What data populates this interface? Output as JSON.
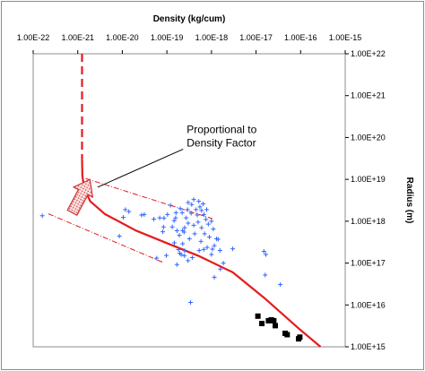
{
  "chart_data": {
    "type": "scatter",
    "title": "",
    "xlabel": "Density (kg/cum)",
    "ylabel": "Radius (m)",
    "x_scale": "log",
    "y_scale": "log",
    "xlim": [
      1e-22,
      1e-15
    ],
    "ylim": [
      1000000000000000.0,
      1e+22
    ],
    "x_ticks": [
      1e-22,
      1e-21,
      1e-20,
      1e-19,
      1e-18,
      1e-17,
      1e-16,
      1e-15
    ],
    "x_tick_labels": [
      "1.00E-22",
      "1.00E-21",
      "1.00E-20",
      "1.00E-19",
      "1.00E-18",
      "1.00E-17",
      "1.00E-16",
      "1.00E-15"
    ],
    "y_ticks": [
      1e+22,
      1e+21,
      1e+20,
      1e+19,
      1e+18,
      1e+17,
      1e+16,
      1000000000000000.0
    ],
    "y_tick_labels": [
      "1.00E+22",
      "1.00E+21",
      "1.00E+20",
      "1.00E+19",
      "1.00E+18",
      "1.00E+17",
      "1.00E+16",
      "1.00E+15"
    ],
    "grid": false,
    "legend": "none",
    "annotation": {
      "lines": [
        "Proportional to",
        "Density Factor"
      ],
      "anchor": [
        3.2e-19,
        1e+20
      ],
      "arrow_to": [
        1.6e-21,
        5.6e+18
      ]
    },
    "colors": {
      "scatter": "#3366ff",
      "curve": "#e41c1c",
      "squares": "#000000",
      "arrow_fill": "#f4b0b0",
      "arrow_stroke": "#cc3030",
      "frame": "#8c8c8c"
    },
    "scatter_series": {
      "marker": "plus",
      "points": [
        [
          1.6e-22,
          1.35e+18
        ],
        [
          8.6e-21,
          4.4e+17
        ],
        [
          1.17e-20,
          1.9e+18
        ],
        [
          1.4e-20,
          1.7e+18
        ],
        [
          1.05e-20,
          1.24e+18
        ],
        [
          2.7e-20,
          1.4e+18
        ],
        [
          3.1e-20,
          1.45e+18
        ],
        [
          5.1e-20,
          1.12e+18
        ],
        [
          6.9e-20,
          1.2e+18
        ],
        [
          8.6e-20,
          1.19e+18
        ],
        [
          1.03e-19,
          1.45e+18
        ],
        [
          1.57e-19,
          1.2e+18
        ],
        [
          1.45e-19,
          1.03e+18
        ],
        [
          1.32e-19,
          7.3e+17
        ],
        [
          8.4e-20,
          7.3e+17
        ],
        [
          8.1e-20,
          5.6e+17
        ],
        [
          1.68e-19,
          5.9e+17
        ],
        [
          1.9e-19,
          4.6e+17
        ],
        [
          2.25e-19,
          6e+17
        ],
        [
          2.43e-19,
          5.5e+17
        ],
        [
          2.26e-19,
          2.9e+17
        ],
        [
          1.82e-19,
          2.1e+17
        ],
        [
          1.94e-19,
          1.72e+17
        ],
        [
          2.1e-19,
          1.59e+17
        ],
        [
          2.5e-19,
          1.98e+17
        ],
        [
          2.48e-19,
          1.5e+17
        ],
        [
          1.47e-19,
          3.05e+17
        ],
        [
          9.7e-20,
          1.52e+17
        ],
        [
          5.9e-20,
          1.32e+17
        ],
        [
          1.68e-19,
          9.2e+16
        ],
        [
          2.98e-19,
          1.14e+17
        ],
        [
          3.7e-19,
          1.35e+17
        ],
        [
          5.3e-19,
          2e+17
        ],
        [
          6.7e-19,
          2.12e+17
        ],
        [
          8e-19,
          2.37e+17
        ],
        [
          1.05e-18,
          2.15e+17
        ],
        [
          1.16e-18,
          2.6e+17
        ],
        [
          1.3e-18,
          3.8e+17
        ],
        [
          1.41e-18,
          3.7e+17
        ],
        [
          1.55e-18,
          2e+17
        ],
        [
          3e-18,
          2.2e+17
        ],
        [
          1e-18,
          1.6e+17
        ],
        [
          1.85e-18,
          1e+17
        ],
        [
          1.58e-18,
          7.2e+16
        ],
        [
          1.16e-18,
          4.6e+16
        ],
        [
          3.4e-19,
          1.15e+16
        ],
        [
          1.5e-17,
          1.9e+17
        ],
        [
          1.66e-17,
          1.6e+17
        ],
        [
          1.6e-17,
          5.2e+16
        ],
        [
          3.5e-17,
          3.08e+16
        ],
        [
          2e-19,
          2e+18
        ],
        [
          3e-19,
          2.8e+18
        ],
        [
          4e-19,
          3.3e+18
        ],
        [
          3.6e-19,
          2.5e+18
        ],
        [
          4.5e-19,
          1.9e+18
        ],
        [
          5.5e-19,
          2.2e+18
        ],
        [
          6e-19,
          1.8e+18
        ],
        [
          4.8e-19,
          1.4e+18
        ],
        [
          3.5e-19,
          1.55e+18
        ],
        [
          2.7e-19,
          1.2e+18
        ],
        [
          6.8e-19,
          1.45e+18
        ],
        [
          7.5e-19,
          1.1e+18
        ],
        [
          5e-19,
          9.5e+17
        ],
        [
          4e-19,
          8e+17
        ],
        [
          6e-19,
          7e+17
        ],
        [
          8.5e-19,
          8.5e+17
        ],
        [
          1e-18,
          1e+18
        ],
        [
          3e-19,
          9e+17
        ],
        [
          2.5e-19,
          7e+17
        ],
        [
          1.6e-19,
          1.6e+18
        ],
        [
          2.2e-19,
          1.6e+18
        ],
        [
          5.2e-19,
          3e+18
        ],
        [
          6.5e-19,
          2.6e+18
        ],
        [
          4.2e-19,
          5e+17
        ],
        [
          7e-19,
          5e+17
        ],
        [
          9e-19,
          4.2e+17
        ],
        [
          3.2e-19,
          3.8e+17
        ],
        [
          5.8e-19,
          3.3e+17
        ],
        [
          1.2e-19,
          2.4e+18
        ],
        [
          2.9e-19,
          1.9e+18
        ],
        [
          7.8e-19,
          1.9e+18
        ],
        [
          1.1e-18,
          6.5e+17
        ]
      ]
    },
    "black_squares": {
      "marker": "square",
      "points": [
        [
          1.1e-17,
          5400000000000000.0
        ],
        [
          1.35e-17,
          3600000000000000.0
        ],
        [
          1.9e-17,
          4200000000000000.0
        ],
        [
          2.2e-17,
          4400000000000000.0
        ],
        [
          2.5e-17,
          4200000000000000.0
        ],
        [
          2.7e-17,
          3200000000000000.0
        ],
        [
          4.5e-17,
          2100000000000000.0
        ],
        [
          5e-17,
          1950000000000000.0
        ],
        [
          9e-17,
          1550000000000000.0
        ],
        [
          9.6e-17,
          1700000000000000.0
        ]
      ]
    },
    "curve_dashed": [
      [
        1.25e-21,
        1e+22
      ],
      [
        1.25e-21,
        3e+19
      ]
    ],
    "curve_solid": [
      [
        1.25e-21,
        3e+19
      ],
      [
        1.27e-21,
        1.2e+19
      ],
      [
        1.4e-21,
        6e+18
      ],
      [
        1.9e-21,
        3e+18
      ],
      [
        4e-21,
        1.5e+18
      ],
      [
        2e-20,
        6e+17
      ],
      [
        1e-19,
        3e+17
      ],
      [
        5e-19,
        1.5e+17
      ],
      [
        3e-18,
        6e+16
      ],
      [
        1.5e-17,
        1.5e+16
      ],
      [
        1e-16,
        2500000000000000.0
      ],
      [
        2.8e-16,
        1000000000000000.0
      ]
    ],
    "guide_upper": [
      [
        1.5e-21,
        1.05e+19
      ],
      [
        1.05e-18,
        1.15e+18
      ]
    ],
    "guide_lower": [
      [
        2.2e-22,
        1.5e+18
      ],
      [
        8e-20,
        1.05e+17
      ]
    ]
  }
}
